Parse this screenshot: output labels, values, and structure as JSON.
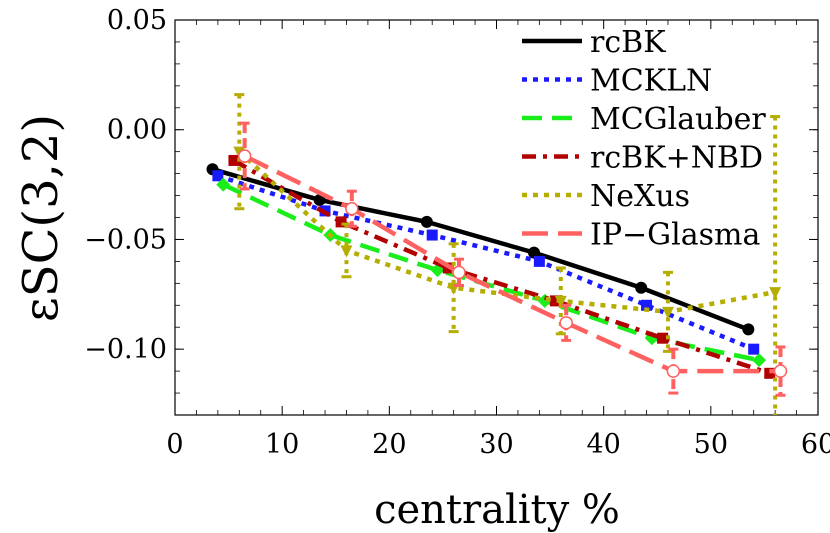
{
  "chart_data": {
    "type": "line",
    "title": "",
    "xlabel": "centrality %",
    "ylabel": "εSC(3,2)",
    "xlim": [
      0,
      60
    ],
    "ylim": [
      -0.13,
      0.05
    ],
    "x_ticks": [
      0,
      10,
      20,
      30,
      40,
      50,
      60
    ],
    "x_tick_labels": [
      "0",
      "10",
      "20",
      "30",
      "40",
      "50",
      "60"
    ],
    "y_ticks": [
      0.05,
      0.0,
      -0.05,
      -0.1
    ],
    "y_tick_labels": [
      "0.05",
      "0.00",
      "-0.05",
      "-0.10"
    ],
    "legend_position": "top-right",
    "series": [
      {
        "name": "rcBK",
        "color": "#000000",
        "dash": "solid",
        "marker": "circle",
        "x": [
          3.5,
          13.5,
          23.5,
          33.5,
          43.5,
          53.5
        ],
        "y": [
          -0.018,
          -0.032,
          -0.042,
          -0.056,
          -0.072,
          -0.091
        ]
      },
      {
        "name": "MCKLN",
        "color": "#1a1aff",
        "dash": "dot",
        "marker": "square",
        "x": [
          4,
          14,
          24,
          34,
          44,
          54
        ],
        "y": [
          -0.021,
          -0.037,
          -0.048,
          -0.06,
          -0.08,
          -0.1
        ]
      },
      {
        "name": "MCGlauber",
        "color": "#1aee1a",
        "dash": "dash",
        "marker": "diamond",
        "x": [
          4.5,
          14.5,
          24.5,
          34.5,
          44.5,
          54.5
        ],
        "y": [
          -0.025,
          -0.048,
          -0.064,
          -0.078,
          -0.095,
          -0.105
        ]
      },
      {
        "name": "rcBK+NBD",
        "color": "#b00000",
        "dash": "dashdot",
        "marker": "square",
        "x": [
          5.5,
          15.5,
          25.5,
          35.5,
          45.5,
          55.5
        ],
        "y": [
          -0.014,
          -0.042,
          -0.063,
          -0.078,
          -0.095,
          -0.111
        ]
      },
      {
        "name": "NeXus",
        "color": "#b5ad00",
        "dash": "dot",
        "marker": "triangle-down",
        "x": [
          6,
          16,
          26,
          36,
          46,
          56
        ],
        "y": [
          -0.01,
          -0.055,
          -0.072,
          -0.078,
          -0.083,
          -0.074
        ],
        "err": [
          0.026,
          0.012,
          0.02,
          0.015,
          0.018,
          0.08
        ]
      },
      {
        "name": "IP-Glasma",
        "color": "#ff6060",
        "dash": "longdash",
        "marker": "open-circle",
        "x": [
          6.5,
          16.5,
          26.5,
          36.5,
          46.5,
          56.5
        ],
        "y": [
          -0.012,
          -0.036,
          -0.065,
          -0.088,
          -0.11,
          -0.11
        ],
        "err": [
          0.015,
          0.008,
          0.006,
          0.008,
          0.01,
          0.011
        ]
      }
    ]
  }
}
